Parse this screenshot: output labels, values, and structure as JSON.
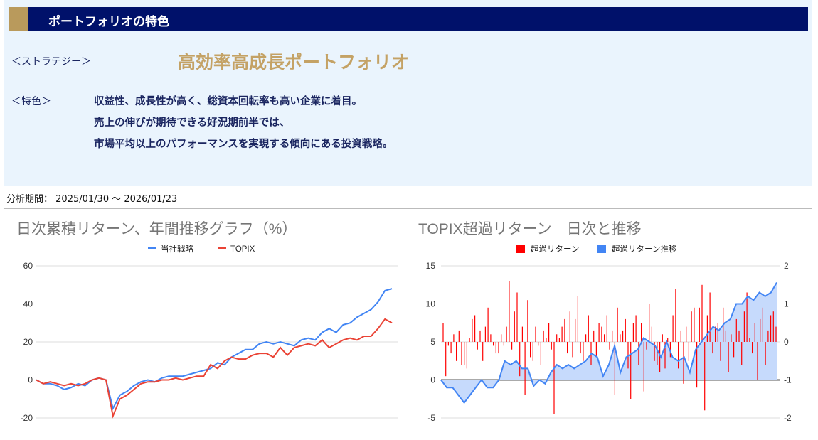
{
  "header": {
    "title": "ポートフォリオの特色"
  },
  "strategy": {
    "label": "＜ストラテジー＞",
    "name": "高効率高成長ポートフォリオ"
  },
  "features": {
    "label": "＜特色＞",
    "lines": [
      "収益性、成長性が高く、総資本回転率も高い企業に着目。",
      "売上の伸びが期待できる好況期前半では、",
      "市場平均以上のパフォーマンスを実現する傾向にある投資戦略。"
    ]
  },
  "period": {
    "label": "分析期間：",
    "value": "2025/01/30 〜 2026/01/23"
  },
  "colors": {
    "navy": "#00116a",
    "gold": "#c4a265",
    "blue": "#4285f4",
    "red": "#ea4335",
    "bar_red": "#ff0000"
  },
  "chart_data": [
    {
      "type": "line",
      "title": "日次累積リターン、年間推移グラフ（%）",
      "legend_position": "top",
      "ylim": [
        -20,
        60
      ],
      "yticks": [
        "60",
        "40",
        "20",
        "0",
        "-20"
      ],
      "grid": true,
      "series": [
        {
          "name": "当社戦略",
          "color": "#4285f4",
          "values": [
            0,
            -2,
            -2,
            -3,
            -5,
            -4,
            -2,
            -3,
            0,
            1,
            0,
            -15,
            -8,
            -6,
            -3,
            -1,
            0,
            -1,
            1,
            2,
            2,
            2,
            3,
            4,
            5,
            6,
            9,
            8,
            12,
            14,
            16,
            16,
            19,
            20,
            19,
            20,
            19,
            18,
            21,
            22,
            21,
            25,
            27,
            25,
            29,
            30,
            33,
            35,
            37,
            41,
            47,
            48
          ]
        },
        {
          "name": "TOPIX",
          "color": "#ea4335",
          "values": [
            0,
            -2,
            -1,
            -2,
            -3,
            -2,
            -3,
            -2,
            0,
            1,
            0,
            -19,
            -10,
            -8,
            -5,
            -2,
            -1,
            -1,
            0,
            0,
            1,
            0,
            1,
            2,
            2,
            8,
            6,
            10,
            12,
            11,
            11,
            13,
            14,
            14,
            12,
            17,
            13,
            17,
            18,
            19,
            18,
            21,
            17,
            19,
            21,
            22,
            21,
            23,
            23,
            27,
            32,
            30
          ]
        }
      ]
    },
    {
      "type": "bar+area",
      "title": "TOPIX超過リターン　日次と推移",
      "legend_position": "top",
      "left_ylim": [
        -5,
        15
      ],
      "left_yticks": [
        "15",
        "10",
        "5",
        "0",
        "-5"
      ],
      "right_ylim": [
        -2,
        2
      ],
      "right_yticks": [
        "2",
        "1",
        "0",
        "-1",
        "-2"
      ],
      "grid": true,
      "series": [
        {
          "name": "超過リターン",
          "axis": "right",
          "type": "bar",
          "color": "#ff0000",
          "values": [
            0.5,
            -0.9,
            -0.1,
            -0.3,
            0.2,
            -0.5,
            0.3,
            -0.6,
            -0.6,
            -0.7,
            0.1,
            0.6,
            0.7,
            -0.2,
            0.3,
            -0.5,
            0.4,
            0.9,
            0.2,
            -0.1,
            -0.3,
            -0.3,
            0.2,
            -0.1,
            0.4,
            1.6,
            -0.2,
            0.8,
            1.3,
            -0.9,
            0.4,
            -1.4,
            1.1,
            -0.4,
            -0.5,
            0.4,
            -0.1,
            -0.6,
            0.3,
            0.1,
            0.5,
            -0.2,
            -1.9,
            0.2,
            0.1,
            0.4,
            0.6,
            -0.3,
            0.8,
            -0.4,
            0.6,
            1.2,
            -0.3,
            -0.5,
            0.2,
            0.7,
            -0.6,
            0.3,
            -0.4,
            0.5,
            0.4,
            0.2,
            0.7,
            -0.2,
            0.3,
            -1.4,
            0.9,
            0.2,
            0.3,
            0.6,
            -0.7,
            -1.5,
            0.5,
            0.7,
            -0.6,
            0.5,
            -1.3,
            -0.2,
            1.0,
            0.4,
            -0.5,
            -0.6,
            -0.8,
            0.2,
            -0.7,
            0.1,
            -0.4,
            0.7,
            1.4,
            -0.7,
            0.3,
            -1.1,
            0.4,
            -0.5,
            0.8,
            0.9,
            -1.2,
            0.9,
            1.5,
            -1.8,
            0.7,
            1.3,
            -0.3,
            0.4,
            0.5,
            -0.5,
            0.9,
            0.3,
            -0.8,
            0.2,
            -0.4,
            0.6,
            0.3,
            -0.6,
            0.8,
            1.3,
            0.1,
            -0.3,
            0.5,
            -1.0,
            0.6,
            0.9,
            -0.6,
            0.3,
            0.7,
            0.8,
            0.4
          ]
        },
        {
          "name": "超過リターン推移",
          "axis": "left",
          "type": "area",
          "color": "#4285f4",
          "values": [
            0,
            -1,
            -1,
            -2,
            -3,
            -2,
            -1,
            0,
            -1,
            -1,
            0,
            2.5,
            2,
            2.5,
            1.5,
            1.5,
            -0.8,
            0,
            -0.5,
            1,
            2,
            1.5,
            2,
            1.5,
            2,
            2.5,
            3.5,
            3,
            0.5,
            2,
            4.5,
            1,
            3,
            3.5,
            4,
            5.5,
            5,
            4.5,
            3,
            5,
            3,
            2.5,
            3,
            1,
            4,
            5,
            6,
            7,
            6.5,
            7.5,
            8,
            10,
            10,
            11,
            10.5,
            11.5,
            11,
            11.5,
            12.8
          ]
        }
      ]
    }
  ]
}
